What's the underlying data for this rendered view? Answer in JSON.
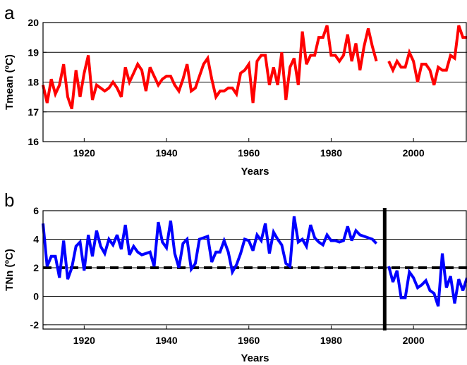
{
  "chart_data": [
    {
      "type": "line",
      "panel_label": "a",
      "xlabel": "Years",
      "ylabel": "Tmean (ºC)",
      "xlim": [
        1910,
        2013
      ],
      "ylim": [
        16,
        20
      ],
      "x_ticks": [
        1920,
        1940,
        1960,
        1980,
        2000
      ],
      "y_ticks": [
        16,
        17,
        18,
        19,
        20
      ],
      "grid": "horizontal",
      "series": [
        {
          "color": "#ff0000",
          "segments": [
            {
              "x": [
                1910,
                1911,
                1912,
                1913,
                1914,
                1915,
                1916,
                1917,
                1918,
                1919,
                1920,
                1921,
                1922,
                1923,
                1924,
                1925,
                1926,
                1927,
                1928,
                1929,
                1930,
                1931,
                1932,
                1933,
                1934,
                1935,
                1936,
                1937,
                1938,
                1939,
                1940,
                1941,
                1942,
                1943,
                1944,
                1945,
                1946,
                1947,
                1948,
                1949,
                1950,
                1951,
                1952,
                1953,
                1954,
                1955,
                1956,
                1957,
                1958,
                1959,
                1960,
                1961,
                1962,
                1963,
                1964,
                1965,
                1966,
                1967,
                1968,
                1969,
                1970,
                1971,
                1972,
                1973,
                1974,
                1975,
                1976,
                1977,
                1978,
                1979,
                1980,
                1981,
                1982,
                1983,
                1984,
                1985,
                1986,
                1987,
                1988,
                1989,
                1990,
                1991
              ],
              "y": [
                17.9,
                17.3,
                18.1,
                17.6,
                17.9,
                18.6,
                17.5,
                17.1,
                18.4,
                17.5,
                18.3,
                18.9,
                17.4,
                17.9,
                17.8,
                17.7,
                17.8,
                18.0,
                17.8,
                17.5,
                18.5,
                18.0,
                18.3,
                18.6,
                18.4,
                17.7,
                18.5,
                18.2,
                17.9,
                18.1,
                18.2,
                18.2,
                17.9,
                17.7,
                18.1,
                18.6,
                17.7,
                17.8,
                18.2,
                18.6,
                18.8,
                18.1,
                17.5,
                17.7,
                17.7,
                17.8,
                17.8,
                17.6,
                18.3,
                18.4,
                18.6,
                17.3,
                18.7,
                18.9,
                18.9,
                17.9,
                18.5,
                17.9,
                19.0,
                17.4,
                18.5,
                18.8,
                17.9,
                19.7,
                18.6,
                18.9,
                18.9,
                19.5,
                19.5,
                19.9,
                18.9,
                18.9,
                18.7,
                18.9,
                19.6,
                18.7,
                19.3,
                18.4,
                19.2,
                19.8,
                19.2,
                18.7
              ]
            },
            {
              "x": [
                1994,
                1995,
                1996,
                1997,
                1998,
                1999,
                2000,
                2001,
                2002,
                2003,
                2004,
                2005,
                2006,
                2007,
                2008,
                2009,
                2010,
                2011,
                2012,
                2013
              ],
              "y": [
                18.7,
                18.4,
                18.7,
                18.5,
                18.5,
                19.0,
                18.7,
                18.0,
                18.6,
                18.6,
                18.4,
                17.9,
                18.5,
                18.4,
                18.4,
                18.9,
                18.8,
                19.9,
                19.5,
                19.5
              ]
            }
          ]
        }
      ]
    },
    {
      "type": "line",
      "panel_label": "b",
      "xlabel": "Years",
      "ylabel": "TNn (ºC)",
      "xlim": [
        1910,
        2013
      ],
      "ylim": [
        -2.3,
        6
      ],
      "x_ticks": [
        1920,
        1940,
        1960,
        1980,
        2000
      ],
      "y_ticks": [
        -2,
        0,
        2,
        4,
        6
      ],
      "grid": "horizontal",
      "reference_line_y": 2,
      "vertical_marker_x": 1993,
      "series": [
        {
          "color": "#0000ff",
          "segments": [
            {
              "x": [
                1910,
                1911,
                1912,
                1913,
                1914,
                1915,
                1916,
                1917,
                1918,
                1919,
                1920,
                1921,
                1922,
                1923,
                1924,
                1925,
                1926,
                1927,
                1928,
                1929,
                1930,
                1931,
                1932,
                1933,
                1934,
                1935,
                1936,
                1937,
                1938,
                1939,
                1940,
                1941,
                1942,
                1943,
                1944,
                1945,
                1946,
                1947,
                1948,
                1949,
                1950,
                1951,
                1952,
                1953,
                1954,
                1955,
                1956,
                1957,
                1958,
                1959,
                1960,
                1961,
                1962,
                1963,
                1964,
                1965,
                1966,
                1967,
                1968,
                1969,
                1970,
                1971,
                1972,
                1973,
                1974,
                1975,
                1976,
                1977,
                1978,
                1979,
                1980,
                1981,
                1982,
                1983,
                1984,
                1985,
                1986,
                1987,
                1988,
                1989,
                1990,
                1991
              ],
              "y": [
                5.1,
                2.1,
                2.8,
                2.8,
                1.3,
                3.9,
                1.2,
                2.0,
                3.5,
                3.8,
                1.8,
                4.3,
                2.8,
                4.6,
                3.5,
                3.0,
                4.0,
                3.6,
                4.3,
                3.3,
                5.0,
                2.9,
                3.5,
                3.1,
                2.9,
                3.0,
                3.1,
                2.1,
                5.2,
                3.8,
                3.4,
                5.3,
                3.0,
                2.0,
                3.7,
                4.0,
                1.9,
                2.3,
                4.0,
                4.1,
                4.2,
                2.4,
                3.1,
                3.1,
                3.9,
                3.1,
                1.7,
                2.2,
                3.0,
                4.0,
                3.9,
                3.2,
                4.3,
                3.9,
                5.1,
                3.0,
                4.5,
                4.0,
                3.6,
                2.3,
                2.1,
                5.6,
                3.8,
                4.0,
                3.5,
                5.0,
                4.1,
                3.8,
                3.6,
                4.3,
                3.9,
                3.9,
                3.8,
                3.9,
                4.9,
                3.9,
                4.6,
                4.3,
                4.2,
                4.1,
                4.0,
                3.7
              ]
            },
            {
              "x": [
                1994,
                1995,
                1996,
                1997,
                1998,
                1999,
                2000,
                2001,
                2002,
                2003,
                2004,
                2005,
                2006,
                2007,
                2008,
                2009,
                2010,
                2011,
                2012,
                2013
              ],
              "y": [
                2.1,
                1.0,
                1.8,
                -0.1,
                -0.1,
                1.7,
                1.3,
                0.6,
                0.8,
                1.1,
                0.4,
                0.2,
                -0.7,
                3.0,
                0.6,
                1.4,
                -0.5,
                1.2,
                0.4,
                1.3
              ]
            }
          ]
        }
      ]
    }
  ]
}
